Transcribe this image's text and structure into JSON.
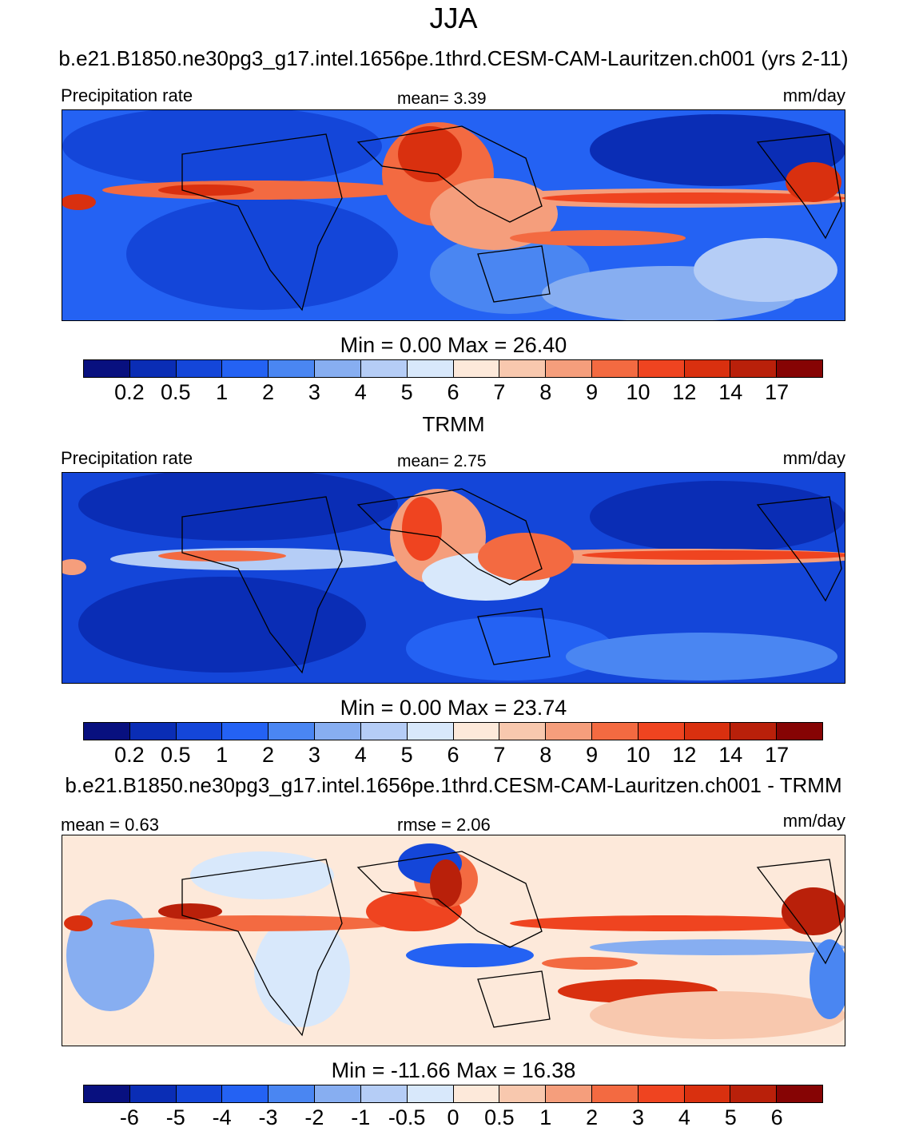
{
  "figure": {
    "title": "JJA"
  },
  "palette": {
    "sequential": [
      "#08107f",
      "#0a2db5",
      "#1446d9",
      "#2462f3",
      "#4a86f2",
      "#87aef1",
      "#b5cdf6",
      "#d8e8fb",
      "#fde9da",
      "#f8c8ae",
      "#f59e7c",
      "#f36a41",
      "#ef4420",
      "#d9300f",
      "#b9200a",
      "#860404"
    ],
    "diverging": [
      "#08107f",
      "#0a2db5",
      "#1446d9",
      "#2462f3",
      "#4a86f2",
      "#87aef1",
      "#b5cdf6",
      "#d8e8fb",
      "#fde9da",
      "#f8c8ae",
      "#f59e7c",
      "#f36a41",
      "#ef4420",
      "#d9300f",
      "#b9200a",
      "#860404"
    ]
  },
  "panels": [
    {
      "title": "b.e21.B1850.ne30pg3_g17.intel.1656pe.1thrd.CESM-CAM-Lauritzen.ch001 (yrs 2-11)",
      "left_label": "Precipitation rate",
      "center_label": "mean=   3.39",
      "right_label": "mm/day",
      "minmax": "Min =   0.00 Max =  26.40",
      "colorbar_ticks": [
        "0.2",
        "0.5",
        "1",
        "2",
        "3",
        "4",
        "5",
        "6",
        "7",
        "8",
        "9",
        "10",
        "12",
        "14",
        "17"
      ],
      "kind": "sequential"
    },
    {
      "title": "TRMM",
      "left_label": "Precipitation rate",
      "center_label": "mean=   2.75",
      "right_label": "mm/day",
      "minmax": "Min =   0.00 Max =  23.74",
      "colorbar_ticks": [
        "0.2",
        "0.5",
        "1",
        "2",
        "3",
        "4",
        "5",
        "6",
        "7",
        "8",
        "9",
        "10",
        "12",
        "14",
        "17"
      ],
      "kind": "sequential"
    },
    {
      "title": "b.e21.B1850.ne30pg3_g17.intel.1656pe.1thrd.CESM-CAM-Lauritzen.ch001 - TRMM",
      "left_label": "mean =   0.63",
      "center_label": "rmse =   2.06",
      "right_label": "mm/day",
      "minmax": "Min = -11.66 Max =  16.38",
      "colorbar_ticks": [
        "-6",
        "-5",
        "-4",
        "-3",
        "-2",
        "-1",
        "-0.5",
        "0",
        "0.5",
        "1",
        "2",
        "3",
        "4",
        "5",
        "6"
      ],
      "kind": "diverging"
    }
  ]
}
